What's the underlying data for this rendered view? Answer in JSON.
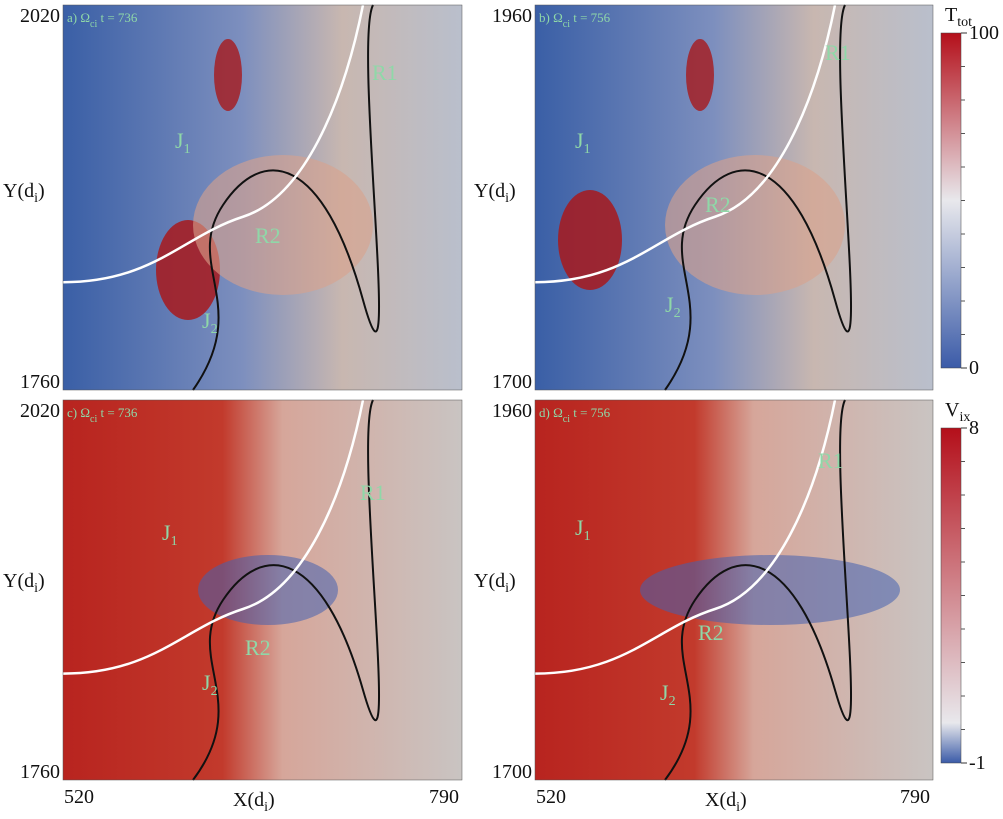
{
  "panels": [
    {
      "label": {
        "prefix": "a) Ω",
        "sub": "ci",
        "suffix": " t = 736"
      },
      "y_top": "2020",
      "y_bottom": "1760",
      "regions": [
        {
          "text": "J",
          "sub": "1"
        },
        {
          "text": "J",
          "sub": "2"
        },
        {
          "text": "R1",
          "sub": ""
        },
        {
          "text": "R2",
          "sub": ""
        }
      ]
    },
    {
      "label": {
        "prefix": "b) Ω",
        "sub": "ci",
        "suffix": " t = 756"
      },
      "y_top": "1960",
      "y_bottom": "1700",
      "regions": [
        {
          "text": "J",
          "sub": "1"
        },
        {
          "text": "J",
          "sub": "2"
        },
        {
          "text": "R1",
          "sub": ""
        },
        {
          "text": "R2",
          "sub": ""
        }
      ]
    },
    {
      "label": {
        "prefix": "c) Ω",
        "sub": "ci",
        "suffix": " t = 736"
      },
      "y_top": "2020",
      "y_bottom": "1760",
      "regions": [
        {
          "text": "J",
          "sub": "1"
        },
        {
          "text": "J",
          "sub": "2"
        },
        {
          "text": "R1",
          "sub": ""
        },
        {
          "text": "R2",
          "sub": ""
        }
      ]
    },
    {
      "label": {
        "prefix": "d) Ω",
        "sub": "ci",
        "suffix": " t = 756"
      },
      "y_top": "1960",
      "y_bottom": "1700",
      "regions": [
        {
          "text": "J",
          "sub": "1"
        },
        {
          "text": "J",
          "sub": "2"
        },
        {
          "text": "R1",
          "sub": ""
        },
        {
          "text": "R2",
          "sub": ""
        }
      ]
    }
  ],
  "y_axis_label": {
    "text": "Y(d",
    "sub": "i",
    "close": ")"
  },
  "x_axis_label": {
    "text": "X(d",
    "sub": "i",
    "close": ")"
  },
  "x_left": "520",
  "x_right": "790",
  "colorbars": [
    {
      "label": "T",
      "sub": "tot",
      "ticks": [
        0,
        100
      ]
    },
    {
      "label": "V",
      "sub": "ix",
      "ticks": [
        -1,
        8
      ]
    }
  ]
}
